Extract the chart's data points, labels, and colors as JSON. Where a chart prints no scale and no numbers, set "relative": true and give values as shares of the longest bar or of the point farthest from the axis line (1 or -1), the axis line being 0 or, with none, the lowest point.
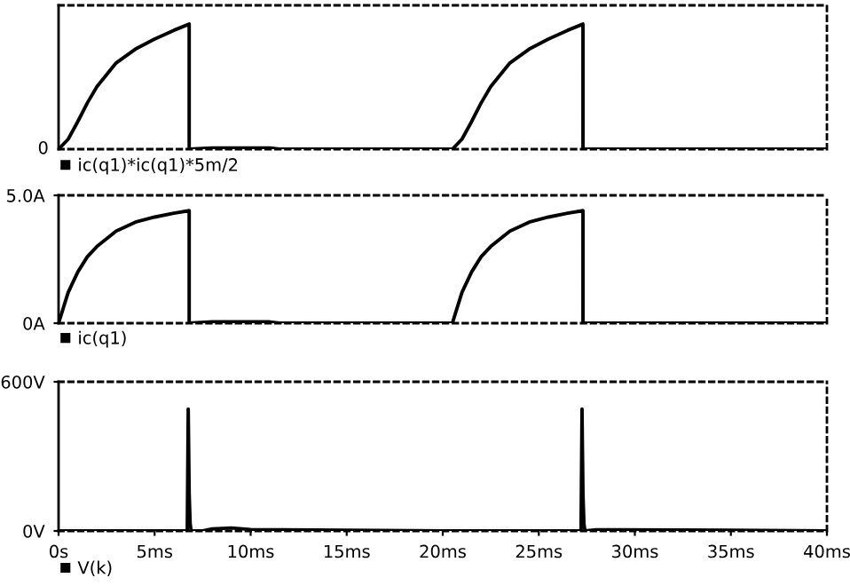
{
  "chart_data": [
    {
      "type": "line",
      "relative": true,
      "tick_labels": false,
      "grid": false,
      "legend": "bottom",
      "annotations": [
        "0"
      ],
      "xlim": [
        0,
        40
      ],
      "series": [
        {
          "name": "ic(q1)*ic(q1)*5m/2",
          "color": "#000000",
          "x": [
            0,
            0.5,
            1,
            1.5,
            2,
            3,
            4,
            5,
            6,
            6.8,
            6.8,
            8,
            11,
            11.5,
            20.5,
            21,
            21.5,
            22,
            22.5,
            23.5,
            24.5,
            25.5,
            26.5,
            27.3,
            27.3,
            40
          ],
          "values": [
            0,
            0.08,
            0.22,
            0.37,
            0.5,
            0.69,
            0.8,
            0.88,
            0.95,
            1,
            0,
            0.01,
            0.01,
            0,
            0,
            0.08,
            0.22,
            0.37,
            0.5,
            0.69,
            0.8,
            0.88,
            0.95,
            1,
            0,
            0
          ]
        }
      ]
    },
    {
      "type": "line",
      "tick_labels": "y",
      "grid": false,
      "legend": "bottom",
      "xlim": [
        0,
        40
      ],
      "ylim": [
        0,
        5
      ],
      "yticks": [
        {
          "value": 0,
          "label": "0A"
        },
        {
          "value": 5,
          "label": "5.0A"
        }
      ],
      "series": [
        {
          "name": "ic(q1)",
          "color": "#000000",
          "x": [
            0,
            0.5,
            1,
            1.5,
            2,
            3,
            4,
            5,
            6,
            6.8,
            6.8,
            8,
            11,
            11.5,
            20.5,
            21,
            21.5,
            22,
            22.5,
            23.5,
            24.5,
            25.5,
            26.5,
            27.3,
            27.3,
            40
          ],
          "values": [
            0,
            1.2,
            2.0,
            2.6,
            3.0,
            3.6,
            3.95,
            4.15,
            4.3,
            4.4,
            0,
            0.05,
            0.05,
            0,
            0,
            1.2,
            2.0,
            2.6,
            3.0,
            3.6,
            3.95,
            4.15,
            4.3,
            4.4,
            0,
            0
          ]
        }
      ]
    },
    {
      "type": "line",
      "grid": false,
      "legend": "bottom",
      "xlim": [
        0,
        40
      ],
      "ylim": [
        0,
        600
      ],
      "yticks": [
        {
          "value": 0,
          "label": "0V"
        },
        {
          "value": 600,
          "label": "600V"
        }
      ],
      "xticks": [
        {
          "value": 0,
          "label": "0s"
        },
        {
          "value": 5,
          "label": "5ms"
        },
        {
          "value": 10,
          "label": "10ms"
        },
        {
          "value": 15,
          "label": "15ms"
        },
        {
          "value": 20,
          "label": "20ms"
        },
        {
          "value": 25,
          "label": "25ms"
        },
        {
          "value": 30,
          "label": "30ms"
        },
        {
          "value": 35,
          "label": "35ms"
        },
        {
          "value": 40,
          "label": "40ms"
        }
      ],
      "series": [
        {
          "name": "V(k)",
          "color": "#000000",
          "x": [
            0,
            6.7,
            6.75,
            6.8,
            6.85,
            6.9,
            7.5,
            8,
            9,
            10,
            15,
            20,
            27.2,
            27.25,
            27.3,
            27.35,
            27.4,
            28,
            29,
            35,
            40
          ],
          "values": [
            0,
            0,
            490,
            150,
            30,
            0,
            0,
            8,
            12,
            6,
            3,
            0,
            0,
            490,
            150,
            30,
            0,
            5,
            5,
            3,
            0
          ]
        }
      ]
    }
  ]
}
